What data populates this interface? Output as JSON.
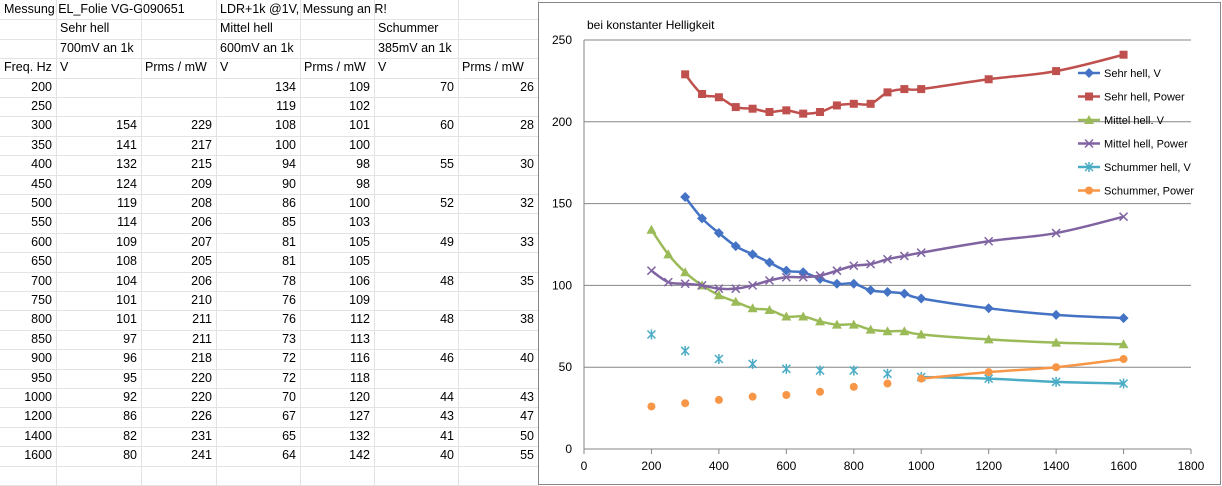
{
  "sheet": {
    "header_rows": [
      [
        "Messung EL_Folie VG-G090651",
        "",
        "",
        "LDR+1k @1V, Messung an R!",
        "",
        "",
        "",
        ""
      ],
      [
        "",
        "Sehr hell",
        "",
        "Mittel hell",
        "",
        "Schummer",
        "",
        ""
      ],
      [
        "",
        "700mV an 1k",
        "",
        "600mV an 1k",
        "",
        "385mV an 1k",
        "",
        ""
      ],
      [
        "Freq. Hz",
        "V",
        "Prms / mW",
        "V",
        "Prms / mW",
        "V",
        "Prms / mW",
        ""
      ]
    ],
    "data_rows": [
      [
        "200",
        "",
        "",
        "134",
        "109",
        "70",
        "26"
      ],
      [
        "250",
        "",
        "",
        "119",
        "102",
        "",
        ""
      ],
      [
        "300",
        "154",
        "229",
        "108",
        "101",
        "60",
        "28"
      ],
      [
        "350",
        "141",
        "217",
        "100",
        "100",
        "",
        ""
      ],
      [
        "400",
        "132",
        "215",
        "94",
        "98",
        "55",
        "30"
      ],
      [
        "450",
        "124",
        "209",
        "90",
        "98",
        "",
        ""
      ],
      [
        "500",
        "119",
        "208",
        "86",
        "100",
        "52",
        "32"
      ],
      [
        "550",
        "114",
        "206",
        "85",
        "103",
        "",
        ""
      ],
      [
        "600",
        "109",
        "207",
        "81",
        "105",
        "49",
        "33"
      ],
      [
        "650",
        "108",
        "205",
        "81",
        "105",
        "",
        ""
      ],
      [
        "700",
        "104",
        "206",
        "78",
        "106",
        "48",
        "35"
      ],
      [
        "750",
        "101",
        "210",
        "76",
        "109",
        "",
        ""
      ],
      [
        "800",
        "101",
        "211",
        "76",
        "112",
        "48",
        "38"
      ],
      [
        "850",
        "97",
        "211",
        "73",
        "113",
        "",
        ""
      ],
      [
        "900",
        "96",
        "218",
        "72",
        "116",
        "46",
        "40"
      ],
      [
        "950",
        "95",
        "220",
        "72",
        "118",
        "",
        ""
      ],
      [
        "1000",
        "92",
        "220",
        "70",
        "120",
        "44",
        "43"
      ],
      [
        "1200",
        "86",
        "226",
        "67",
        "127",
        "43",
        "47"
      ],
      [
        "1400",
        "82",
        "231",
        "65",
        "132",
        "41",
        "50"
      ],
      [
        "1600",
        "80",
        "241",
        "64",
        "142",
        "40",
        "55"
      ]
    ]
  },
  "chart_data": {
    "type": "line",
    "title": "bei konstanter Helligkeit",
    "xlim": [
      0,
      1800
    ],
    "ylim": [
      0,
      250
    ],
    "x_ticks": [
      "0",
      "200",
      "400",
      "600",
      "800",
      "1000",
      "1200",
      "1400",
      "1600",
      "1800"
    ],
    "y_ticks": [
      "0",
      "50",
      "100",
      "150",
      "200",
      "250"
    ],
    "grid": "horizontal",
    "legend_position": "right",
    "series": [
      {
        "name": "Sehr hell, V",
        "color": "#4472c4",
        "marker": "diamond",
        "line": true,
        "x": [
          300,
          350,
          400,
          450,
          500,
          550,
          600,
          650,
          700,
          750,
          800,
          850,
          900,
          950,
          1000,
          1200,
          1400,
          1600
        ],
        "y": [
          154,
          141,
          132,
          124,
          119,
          114,
          109,
          108,
          104,
          101,
          101,
          97,
          96,
          95,
          92,
          86,
          82,
          80
        ]
      },
      {
        "name": "Sehr hell, Power",
        "color": "#c0504d",
        "marker": "square",
        "line": true,
        "x": [
          300,
          350,
          400,
          450,
          500,
          550,
          600,
          650,
          700,
          750,
          800,
          850,
          900,
          950,
          1000,
          1200,
          1400,
          1600
        ],
        "y": [
          229,
          217,
          215,
          209,
          208,
          206,
          207,
          205,
          206,
          210,
          211,
          211,
          218,
          220,
          220,
          226,
          231,
          241
        ]
      },
      {
        "name": "Mittel hell. V",
        "color": "#9bbb59",
        "marker": "triangle",
        "line": true,
        "x": [
          200,
          250,
          300,
          350,
          400,
          450,
          500,
          550,
          600,
          650,
          700,
          750,
          800,
          850,
          900,
          950,
          1000,
          1200,
          1400,
          1600
        ],
        "y": [
          134,
          119,
          108,
          100,
          94,
          90,
          86,
          85,
          81,
          81,
          78,
          76,
          76,
          73,
          72,
          72,
          70,
          67,
          65,
          64
        ]
      },
      {
        "name": "Mittel hell, Power",
        "color": "#8064a2",
        "marker": "x",
        "line": true,
        "x": [
          200,
          250,
          300,
          350,
          400,
          450,
          500,
          550,
          600,
          650,
          700,
          750,
          800,
          850,
          900,
          950,
          1000,
          1200,
          1400,
          1600
        ],
        "y": [
          109,
          102,
          101,
          100,
          98,
          98,
          100,
          103,
          105,
          105,
          106,
          109,
          112,
          113,
          116,
          118,
          120,
          127,
          132,
          142
        ]
      },
      {
        "name": "Schummer hell, V",
        "color": "#4bacc6",
        "marker": "star",
        "line": true,
        "x": [
          200,
          300,
          400,
          500,
          600,
          700,
          800,
          900,
          1000,
          1200,
          1400,
          1600
        ],
        "y": [
          70,
          60,
          55,
          52,
          49,
          48,
          48,
          46,
          44,
          43,
          41,
          40
        ]
      },
      {
        "name": "Schummer, Power",
        "color": "#f79646",
        "marker": "circle",
        "line": true,
        "x": [
          200,
          300,
          400,
          500,
          600,
          700,
          800,
          900,
          1000,
          1200,
          1400,
          1600
        ],
        "y": [
          26,
          28,
          30,
          32,
          33,
          35,
          38,
          40,
          43,
          47,
          50,
          55
        ]
      }
    ]
  }
}
